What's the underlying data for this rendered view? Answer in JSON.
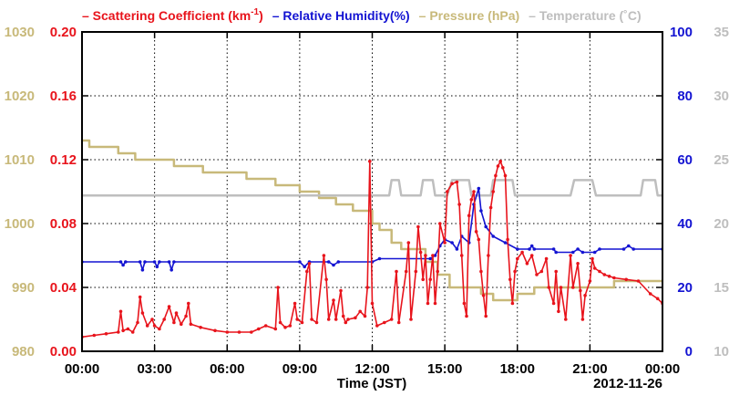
{
  "colors": {
    "scattering": "#e8141c",
    "humidity": "#1414d2",
    "pressure": "#c8b97a",
    "temperature": "#bebebe",
    "frame": "#000000"
  },
  "chart_data": {
    "type": "line",
    "xlabel": "Time (JST)",
    "date_label": "2012-11-26",
    "grid": true,
    "x_ticks": [
      "00:00",
      "03:00",
      "06:00",
      "09:00",
      "12:00",
      "15:00",
      "18:00",
      "21:00",
      "00:00"
    ],
    "xlim": [
      "2012-11-26 00:00",
      "2012-11-27 00:00"
    ],
    "axes": {
      "pressure": {
        "ylim": [
          980,
          1030
        ],
        "ticks": [
          "980",
          "990",
          "1000",
          "1010",
          "1020",
          "1030"
        ]
      },
      "scattering": {
        "ylim": [
          0,
          0.2
        ],
        "ticks": [
          "0.00",
          "0.04",
          "0.08",
          "0.12",
          "0.16",
          "0.20"
        ]
      },
      "humidity": {
        "ylim": [
          0,
          100
        ],
        "ticks": [
          "0",
          "20",
          "40",
          "60",
          "80",
          "100"
        ]
      },
      "temperature": {
        "ylim": [
          10,
          35
        ],
        "ticks": [
          "10",
          "15",
          "20",
          "25",
          "30",
          "35"
        ]
      }
    },
    "legend": [
      {
        "key": "scattering",
        "prefix": "– ",
        "text": "Scattering Coefficient (km",
        "sup": "-1",
        "suffix": ")"
      },
      {
        "key": "humidity",
        "prefix": "– ",
        "text": "Relative Humidity(%)"
      },
      {
        "key": "pressure",
        "prefix": "– ",
        "text": "Pressure (hPa)"
      },
      {
        "key": "temperature",
        "prefix": "– ",
        "text": "Temperature (˚C)"
      }
    ],
    "series": [
      {
        "key": "pressure",
        "name": "Pressure (hPa)",
        "step": true,
        "points": [
          [
            0,
            1013
          ],
          [
            0.3,
            1012
          ],
          [
            1.5,
            1011
          ],
          [
            2.2,
            1010
          ],
          [
            3.8,
            1009
          ],
          [
            5,
            1008
          ],
          [
            6.8,
            1007
          ],
          [
            8,
            1006
          ],
          [
            9,
            1005
          ],
          [
            9.8,
            1004
          ],
          [
            10.5,
            1003
          ],
          [
            11.2,
            1002
          ],
          [
            12,
            1000
          ],
          [
            12.3,
            999
          ],
          [
            12.8,
            997
          ],
          [
            13.2,
            996
          ],
          [
            14.2,
            994
          ],
          [
            14.7,
            992
          ],
          [
            15.2,
            990
          ],
          [
            16.5,
            989
          ],
          [
            17,
            988
          ],
          [
            18,
            989
          ],
          [
            18.7,
            990
          ],
          [
            20,
            990
          ],
          [
            22,
            991
          ],
          [
            24,
            991
          ]
        ]
      },
      {
        "key": "temperature",
        "name": "Temperature (˚C)",
        "step": false,
        "points": [
          [
            0,
            22.2
          ],
          [
            12.7,
            22.2
          ],
          [
            12.8,
            23.4
          ],
          [
            13.1,
            23.4
          ],
          [
            13.2,
            22.2
          ],
          [
            14,
            22.2
          ],
          [
            14.1,
            23.4
          ],
          [
            14.5,
            23.4
          ],
          [
            14.6,
            22.2
          ],
          [
            15.1,
            22.2
          ],
          [
            15.3,
            23.4
          ],
          [
            16,
            23.4
          ],
          [
            16.1,
            22.2
          ],
          [
            16.9,
            22.2
          ],
          [
            17,
            23.4
          ],
          [
            17.8,
            23.4
          ],
          [
            17.9,
            22.2
          ],
          [
            20.2,
            22.2
          ],
          [
            20.35,
            23.4
          ],
          [
            21.1,
            23.4
          ],
          [
            21.25,
            22.2
          ],
          [
            23.1,
            22.2
          ],
          [
            23.2,
            23.4
          ],
          [
            23.7,
            23.4
          ],
          [
            23.8,
            22.2
          ],
          [
            24,
            22.2
          ]
        ]
      },
      {
        "key": "humidity",
        "name": "Relative Humidity(%)",
        "step": false,
        "points": [
          [
            0,
            28
          ],
          [
            1.6,
            28
          ],
          [
            1.7,
            27
          ],
          [
            1.8,
            28
          ],
          [
            2.4,
            28
          ],
          [
            2.5,
            25.5
          ],
          [
            2.6,
            28
          ],
          [
            3.0,
            28
          ],
          [
            3.1,
            26.5
          ],
          [
            3.2,
            28
          ],
          [
            3.6,
            28
          ],
          [
            3.7,
            25.5
          ],
          [
            3.8,
            28
          ],
          [
            9.0,
            28
          ],
          [
            9.2,
            26.5
          ],
          [
            9.4,
            28
          ],
          [
            10.2,
            28
          ],
          [
            10.4,
            27
          ],
          [
            10.6,
            28
          ],
          [
            12.0,
            28
          ],
          [
            12.3,
            29
          ],
          [
            14.4,
            29
          ],
          [
            14.6,
            30
          ],
          [
            14.8,
            33
          ],
          [
            15.0,
            35
          ],
          [
            15.3,
            34
          ],
          [
            15.5,
            32
          ],
          [
            15.7,
            36
          ],
          [
            16.0,
            34
          ],
          [
            16.2,
            46
          ],
          [
            16.4,
            51
          ],
          [
            16.5,
            44
          ],
          [
            16.7,
            39
          ],
          [
            17.0,
            36
          ],
          [
            17.5,
            34
          ],
          [
            18.0,
            32
          ],
          [
            18.5,
            32
          ],
          [
            18.6,
            33
          ],
          [
            18.7,
            32
          ],
          [
            19.5,
            32
          ],
          [
            19.6,
            31
          ],
          [
            20.3,
            31
          ],
          [
            20.5,
            32
          ],
          [
            20.7,
            31
          ],
          [
            21.2,
            31
          ],
          [
            21.4,
            32
          ],
          [
            22.4,
            32
          ],
          [
            22.6,
            33
          ],
          [
            22.8,
            32
          ],
          [
            24,
            32
          ]
        ]
      },
      {
        "key": "scattering",
        "name": "Scattering Coefficient (km-1)",
        "step": false,
        "points": [
          [
            0,
            0.009
          ],
          [
            0.5,
            0.01
          ],
          [
            1.0,
            0.011
          ],
          [
            1.5,
            0.012
          ],
          [
            1.6,
            0.025
          ],
          [
            1.7,
            0.013
          ],
          [
            1.9,
            0.014
          ],
          [
            2.1,
            0.012
          ],
          [
            2.3,
            0.018
          ],
          [
            2.4,
            0.034
          ],
          [
            2.5,
            0.024
          ],
          [
            2.7,
            0.016
          ],
          [
            2.9,
            0.02
          ],
          [
            3.0,
            0.016
          ],
          [
            3.2,
            0.014
          ],
          [
            3.4,
            0.02
          ],
          [
            3.6,
            0.028
          ],
          [
            3.8,
            0.018
          ],
          [
            3.9,
            0.024
          ],
          [
            4.1,
            0.017
          ],
          [
            4.3,
            0.022
          ],
          [
            4.4,
            0.03
          ],
          [
            4.5,
            0.017
          ],
          [
            4.9,
            0.015
          ],
          [
            5.5,
            0.013
          ],
          [
            6.0,
            0.012
          ],
          [
            6.5,
            0.012
          ],
          [
            7.0,
            0.012
          ],
          [
            7.3,
            0.014
          ],
          [
            7.6,
            0.016
          ],
          [
            8.0,
            0.014
          ],
          [
            8.1,
            0.04
          ],
          [
            8.2,
            0.018
          ],
          [
            8.4,
            0.015
          ],
          [
            8.6,
            0.016
          ],
          [
            8.8,
            0.03
          ],
          [
            8.9,
            0.02
          ],
          [
            9.1,
            0.018
          ],
          [
            9.3,
            0.05
          ],
          [
            9.4,
            0.055
          ],
          [
            9.5,
            0.02
          ],
          [
            9.7,
            0.018
          ],
          [
            10.0,
            0.06
          ],
          [
            10.1,
            0.045
          ],
          [
            10.2,
            0.02
          ],
          [
            10.4,
            0.032
          ],
          [
            10.5,
            0.02
          ],
          [
            10.7,
            0.038
          ],
          [
            10.8,
            0.022
          ],
          [
            10.9,
            0.018
          ],
          [
            11.0,
            0.02
          ],
          [
            11.3,
            0.021
          ],
          [
            11.5,
            0.025
          ],
          [
            11.7,
            0.022
          ],
          [
            11.8,
            0.04
          ],
          [
            11.9,
            0.119
          ],
          [
            12.0,
            0.03
          ],
          [
            12.2,
            0.016
          ],
          [
            12.5,
            0.018
          ],
          [
            12.8,
            0.02
          ],
          [
            13.0,
            0.05
          ],
          [
            13.1,
            0.018
          ],
          [
            13.4,
            0.05
          ],
          [
            13.5,
            0.068
          ],
          [
            13.6,
            0.02
          ],
          [
            13.8,
            0.05
          ],
          [
            13.9,
            0.078
          ],
          [
            14.0,
            0.062
          ],
          [
            14.1,
            0.045
          ],
          [
            14.2,
            0.06
          ],
          [
            14.3,
            0.03
          ],
          [
            14.4,
            0.045
          ],
          [
            14.5,
            0.06
          ],
          [
            14.6,
            0.03
          ],
          [
            14.7,
            0.05
          ],
          [
            14.8,
            0.08
          ],
          [
            15.0,
            0.068
          ],
          [
            15.1,
            0.1
          ],
          [
            15.3,
            0.105
          ],
          [
            15.5,
            0.106
          ],
          [
            15.6,
            0.092
          ],
          [
            15.7,
            0.06
          ],
          [
            15.8,
            0.03
          ],
          [
            15.9,
            0.022
          ],
          [
            16.0,
            0.085
          ],
          [
            16.1,
            0.095
          ],
          [
            16.2,
            0.1
          ],
          [
            16.3,
            0.075
          ],
          [
            16.4,
            0.07
          ],
          [
            16.5,
            0.05
          ],
          [
            16.6,
            0.035
          ],
          [
            16.7,
            0.022
          ],
          [
            16.8,
            0.06
          ],
          [
            16.9,
            0.09
          ],
          [
            17.0,
            0.1
          ],
          [
            17.1,
            0.11
          ],
          [
            17.2,
            0.116
          ],
          [
            17.3,
            0.119
          ],
          [
            17.4,
            0.115
          ],
          [
            17.5,
            0.11
          ],
          [
            17.6,
            0.07
          ],
          [
            17.7,
            0.045
          ],
          [
            17.8,
            0.03
          ],
          [
            17.9,
            0.05
          ],
          [
            18.0,
            0.058
          ],
          [
            18.2,
            0.062
          ],
          [
            18.4,
            0.055
          ],
          [
            18.6,
            0.06
          ],
          [
            18.8,
            0.048
          ],
          [
            19.0,
            0.05
          ],
          [
            19.2,
            0.058
          ],
          [
            19.3,
            0.04
          ],
          [
            19.5,
            0.03
          ],
          [
            19.6,
            0.05
          ],
          [
            19.7,
            0.025
          ],
          [
            19.8,
            0.04
          ],
          [
            20.0,
            0.02
          ],
          [
            20.2,
            0.06
          ],
          [
            20.3,
            0.04
          ],
          [
            20.5,
            0.055
          ],
          [
            20.6,
            0.038
          ],
          [
            20.7,
            0.02
          ],
          [
            20.8,
            0.035
          ],
          [
            21.0,
            0.044
          ],
          [
            21.1,
            0.058
          ],
          [
            21.2,
            0.052
          ],
          [
            21.4,
            0.05
          ],
          [
            21.6,
            0.048
          ],
          [
            21.8,
            0.047
          ],
          [
            22.0,
            0.046
          ],
          [
            22.5,
            0.045
          ],
          [
            23.0,
            0.044
          ],
          [
            23.5,
            0.036
          ],
          [
            23.8,
            0.033
          ],
          [
            24,
            0.03
          ]
        ]
      }
    ]
  }
}
